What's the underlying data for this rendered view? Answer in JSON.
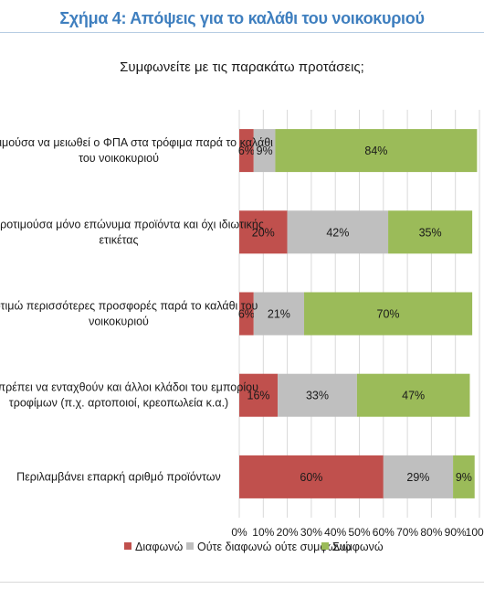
{
  "figure_title": "Σχήμα 4: Απόψεις για το καλάθι του νοικοκυριού",
  "chart_data": {
    "type": "bar",
    "orientation": "horizontal",
    "stacked": "percent",
    "title": "Συμφωνείτε με τις παρακάτω προτάσεις;",
    "categories": [
      [
        "α προτιμούσα να μειωθεί ο ΦΠΑ στα τρόφιμα παρά το καλάθι",
        "του νοικοκυριού"
      ],
      [
        "Θα προτιμούσα μόνο επώνυμα προϊόντα και όχι ιδιωτικής",
        "ετικέτας"
      ],
      [
        "Προτιμώ περισσότερες προσφορές παρά το καλάθι του",
        "νοικοκυριού"
      ],
      [
        "Θα πρέπει να ενταχθούν και άλλοι κλάδοι του εμπορίου",
        "τροφίμων (π.χ. αρτοποιοί, κρεοπωλεία κ.α.)"
      ],
      [
        "Περιλαμβάνει επαρκή αριθμό προϊόντων"
      ]
    ],
    "series": [
      {
        "name": "Διαφωνώ",
        "color": "#c0504d",
        "values": [
          6,
          20,
          6,
          16,
          60
        ],
        "labels": [
          "6%",
          "20%",
          "6%",
          "16%",
          "60%"
        ]
      },
      {
        "name": "Ούτε διαφωνώ ούτε συμφωνώ",
        "color": "#bfbfbf",
        "values": [
          9,
          42,
          21,
          33,
          29
        ],
        "labels": [
          "9%",
          "42%",
          "21%",
          "33%",
          "29%"
        ]
      },
      {
        "name": "Συμφωνώ",
        "color": "#9bbb59",
        "values": [
          84,
          35,
          70,
          47,
          9
        ],
        "labels": [
          "84%",
          "35%",
          "70%",
          "47%",
          "9%"
        ]
      }
    ],
    "xlim": [
      0,
      100
    ],
    "xticks": [
      "0%",
      "10%",
      "20%",
      "30%",
      "40%",
      "50%",
      "60%",
      "70%",
      "80%",
      "90%",
      "100%"
    ],
    "gridlines": true,
    "legend_position": "bottom"
  }
}
